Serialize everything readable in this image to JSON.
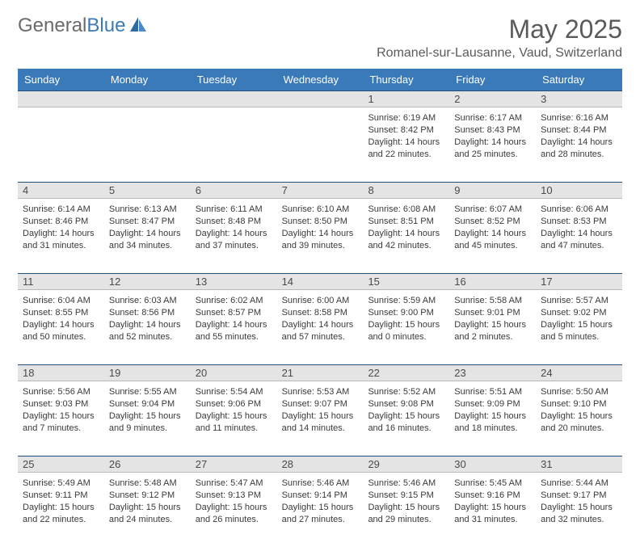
{
  "brand": {
    "part1": "General",
    "part2": "Blue"
  },
  "title": "May 2025",
  "location": "Romanel-sur-Lausanne, Vaud, Switzerland",
  "colors": {
    "header_bg": "#3a7ab8",
    "daynum_bg": "#e4e4e4",
    "daynum_border_top": "#1f4f7a",
    "text": "#3a3a3a",
    "title_text": "#5a5a5a",
    "white": "#ffffff"
  },
  "typography": {
    "title_fontsize": 32,
    "location_fontsize": 16,
    "header_fontsize": 13,
    "daynum_fontsize": 13,
    "info_fontsize": 11
  },
  "weekdays": [
    "Sunday",
    "Monday",
    "Tuesday",
    "Wednesday",
    "Thursday",
    "Friday",
    "Saturday"
  ],
  "weeks": [
    [
      {
        "n": "",
        "sunrise": "",
        "sunset": "",
        "daylight": ""
      },
      {
        "n": "",
        "sunrise": "",
        "sunset": "",
        "daylight": ""
      },
      {
        "n": "",
        "sunrise": "",
        "sunset": "",
        "daylight": ""
      },
      {
        "n": "",
        "sunrise": "",
        "sunset": "",
        "daylight": ""
      },
      {
        "n": "1",
        "sunrise": "Sunrise: 6:19 AM",
        "sunset": "Sunset: 8:42 PM",
        "daylight": "Daylight: 14 hours and 22 minutes."
      },
      {
        "n": "2",
        "sunrise": "Sunrise: 6:17 AM",
        "sunset": "Sunset: 8:43 PM",
        "daylight": "Daylight: 14 hours and 25 minutes."
      },
      {
        "n": "3",
        "sunrise": "Sunrise: 6:16 AM",
        "sunset": "Sunset: 8:44 PM",
        "daylight": "Daylight: 14 hours and 28 minutes."
      }
    ],
    [
      {
        "n": "4",
        "sunrise": "Sunrise: 6:14 AM",
        "sunset": "Sunset: 8:46 PM",
        "daylight": "Daylight: 14 hours and 31 minutes."
      },
      {
        "n": "5",
        "sunrise": "Sunrise: 6:13 AM",
        "sunset": "Sunset: 8:47 PM",
        "daylight": "Daylight: 14 hours and 34 minutes."
      },
      {
        "n": "6",
        "sunrise": "Sunrise: 6:11 AM",
        "sunset": "Sunset: 8:48 PM",
        "daylight": "Daylight: 14 hours and 37 minutes."
      },
      {
        "n": "7",
        "sunrise": "Sunrise: 6:10 AM",
        "sunset": "Sunset: 8:50 PM",
        "daylight": "Daylight: 14 hours and 39 minutes."
      },
      {
        "n": "8",
        "sunrise": "Sunrise: 6:08 AM",
        "sunset": "Sunset: 8:51 PM",
        "daylight": "Daylight: 14 hours and 42 minutes."
      },
      {
        "n": "9",
        "sunrise": "Sunrise: 6:07 AM",
        "sunset": "Sunset: 8:52 PM",
        "daylight": "Daylight: 14 hours and 45 minutes."
      },
      {
        "n": "10",
        "sunrise": "Sunrise: 6:06 AM",
        "sunset": "Sunset: 8:53 PM",
        "daylight": "Daylight: 14 hours and 47 minutes."
      }
    ],
    [
      {
        "n": "11",
        "sunrise": "Sunrise: 6:04 AM",
        "sunset": "Sunset: 8:55 PM",
        "daylight": "Daylight: 14 hours and 50 minutes."
      },
      {
        "n": "12",
        "sunrise": "Sunrise: 6:03 AM",
        "sunset": "Sunset: 8:56 PM",
        "daylight": "Daylight: 14 hours and 52 minutes."
      },
      {
        "n": "13",
        "sunrise": "Sunrise: 6:02 AM",
        "sunset": "Sunset: 8:57 PM",
        "daylight": "Daylight: 14 hours and 55 minutes."
      },
      {
        "n": "14",
        "sunrise": "Sunrise: 6:00 AM",
        "sunset": "Sunset: 8:58 PM",
        "daylight": "Daylight: 14 hours and 57 minutes."
      },
      {
        "n": "15",
        "sunrise": "Sunrise: 5:59 AM",
        "sunset": "Sunset: 9:00 PM",
        "daylight": "Daylight: 15 hours and 0 minutes."
      },
      {
        "n": "16",
        "sunrise": "Sunrise: 5:58 AM",
        "sunset": "Sunset: 9:01 PM",
        "daylight": "Daylight: 15 hours and 2 minutes."
      },
      {
        "n": "17",
        "sunrise": "Sunrise: 5:57 AM",
        "sunset": "Sunset: 9:02 PM",
        "daylight": "Daylight: 15 hours and 5 minutes."
      }
    ],
    [
      {
        "n": "18",
        "sunrise": "Sunrise: 5:56 AM",
        "sunset": "Sunset: 9:03 PM",
        "daylight": "Daylight: 15 hours and 7 minutes."
      },
      {
        "n": "19",
        "sunrise": "Sunrise: 5:55 AM",
        "sunset": "Sunset: 9:04 PM",
        "daylight": "Daylight: 15 hours and 9 minutes."
      },
      {
        "n": "20",
        "sunrise": "Sunrise: 5:54 AM",
        "sunset": "Sunset: 9:06 PM",
        "daylight": "Daylight: 15 hours and 11 minutes."
      },
      {
        "n": "21",
        "sunrise": "Sunrise: 5:53 AM",
        "sunset": "Sunset: 9:07 PM",
        "daylight": "Daylight: 15 hours and 14 minutes."
      },
      {
        "n": "22",
        "sunrise": "Sunrise: 5:52 AM",
        "sunset": "Sunset: 9:08 PM",
        "daylight": "Daylight: 15 hours and 16 minutes."
      },
      {
        "n": "23",
        "sunrise": "Sunrise: 5:51 AM",
        "sunset": "Sunset: 9:09 PM",
        "daylight": "Daylight: 15 hours and 18 minutes."
      },
      {
        "n": "24",
        "sunrise": "Sunrise: 5:50 AM",
        "sunset": "Sunset: 9:10 PM",
        "daylight": "Daylight: 15 hours and 20 minutes."
      }
    ],
    [
      {
        "n": "25",
        "sunrise": "Sunrise: 5:49 AM",
        "sunset": "Sunset: 9:11 PM",
        "daylight": "Daylight: 15 hours and 22 minutes."
      },
      {
        "n": "26",
        "sunrise": "Sunrise: 5:48 AM",
        "sunset": "Sunset: 9:12 PM",
        "daylight": "Daylight: 15 hours and 24 minutes."
      },
      {
        "n": "27",
        "sunrise": "Sunrise: 5:47 AM",
        "sunset": "Sunset: 9:13 PM",
        "daylight": "Daylight: 15 hours and 26 minutes."
      },
      {
        "n": "28",
        "sunrise": "Sunrise: 5:46 AM",
        "sunset": "Sunset: 9:14 PM",
        "daylight": "Daylight: 15 hours and 27 minutes."
      },
      {
        "n": "29",
        "sunrise": "Sunrise: 5:46 AM",
        "sunset": "Sunset: 9:15 PM",
        "daylight": "Daylight: 15 hours and 29 minutes."
      },
      {
        "n": "30",
        "sunrise": "Sunrise: 5:45 AM",
        "sunset": "Sunset: 9:16 PM",
        "daylight": "Daylight: 15 hours and 31 minutes."
      },
      {
        "n": "31",
        "sunrise": "Sunrise: 5:44 AM",
        "sunset": "Sunset: 9:17 PM",
        "daylight": "Daylight: 15 hours and 32 minutes."
      }
    ]
  ]
}
